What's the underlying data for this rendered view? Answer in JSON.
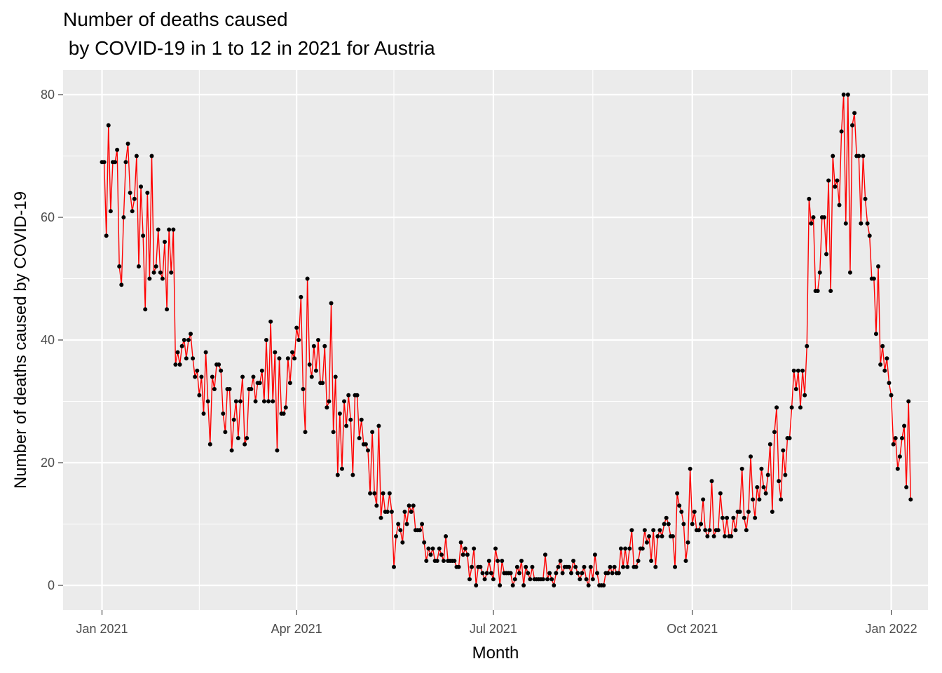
{
  "chart_data": {
    "type": "line",
    "title_lines": [
      "Number of deaths caused",
      " by COVID-19 in 1 to 12 in 2021 for Austria"
    ],
    "xlabel": "Month",
    "ylabel": "Number of deaths caused by COVID-19",
    "x_ticks": [
      "Jan 2021",
      "Apr 2021",
      "Jul 2021",
      "Oct 2021",
      "Jan 2022"
    ],
    "y_ticks": [
      "0",
      "20",
      "40",
      "60",
      "80"
    ],
    "ylim": [
      -4,
      84
    ],
    "xlim": [
      "2020-12-14",
      "2022-01-18"
    ],
    "grid": true,
    "panel_background": "#ebebeb",
    "line_color": "#ff0000",
    "point_color": "#000000",
    "x_start": "2021-01-01",
    "x_step": "1 day",
    "values": [
      69,
      69,
      57,
      75,
      61,
      69,
      69,
      71,
      52,
      49,
      60,
      69,
      72,
      64,
      61,
      63,
      70,
      52,
      65,
      57,
      45,
      64,
      50,
      70,
      51,
      52,
      58,
      51,
      50,
      56,
      45,
      58,
      51,
      58,
      36,
      38,
      36,
      39,
      40,
      37,
      40,
      41,
      37,
      34,
      35,
      31,
      34,
      28,
      38,
      30,
      23,
      34,
      32,
      36,
      36,
      35,
      28,
      25,
      32,
      32,
      22,
      27,
      30,
      24,
      30,
      34,
      23,
      24,
      32,
      32,
      34,
      30,
      33,
      33,
      35,
      30,
      40,
      30,
      43,
      30,
      38,
      22,
      37,
      28,
      28,
      29,
      37,
      33,
      38,
      37,
      42,
      40,
      47,
      32,
      25,
      50,
      36,
      34,
      39,
      35,
      40,
      33,
      33,
      39,
      29,
      30,
      46,
      25,
      34,
      18,
      28,
      19,
      30,
      26,
      31,
      27,
      18,
      31,
      31,
      24,
      27,
      23,
      23,
      22,
      15,
      25,
      15,
      13,
      26,
      11,
      15,
      12,
      12,
      15,
      12,
      3,
      8,
      10,
      9,
      7,
      12,
      10,
      13,
      12,
      13,
      9,
      9,
      9,
      10,
      7,
      4,
      6,
      5,
      6,
      4,
      4,
      6,
      5,
      4,
      8,
      4,
      4,
      4,
      4,
      3,
      3,
      7,
      5,
      6,
      5,
      1,
      3,
      6,
      0,
      3,
      3,
      2,
      1,
      2,
      4,
      2,
      1,
      6,
      4,
      0,
      4,
      2,
      2,
      2,
      2,
      0,
      1,
      3,
      2,
      4,
      0,
      3,
      2,
      1,
      3,
      1,
      1,
      1,
      1,
      1,
      5,
      1,
      2,
      1,
      0,
      2,
      3,
      4,
      2,
      3,
      3,
      3,
      2,
      4,
      3,
      2,
      1,
      2,
      3,
      1,
      0,
      3,
      1,
      5,
      2,
      0,
      0,
      0,
      2,
      2,
      3,
      2,
      3,
      2,
      2,
      6,
      3,
      6,
      3,
      6,
      9,
      3,
      3,
      4,
      6,
      6,
      9,
      7,
      8,
      4,
      9,
      3,
      8,
      9,
      8,
      10,
      11,
      10,
      8,
      8,
      3,
      15,
      13,
      12,
      10,
      4,
      7,
      19,
      10,
      12,
      9,
      9,
      10,
      14,
      9,
      8,
      9,
      17,
      8,
      9,
      9,
      15,
      11,
      8,
      11,
      8,
      8,
      11,
      9,
      12,
      12,
      19,
      11,
      9,
      12,
      21,
      14,
      11,
      16,
      14,
      19,
      16,
      15,
      18,
      23,
      12,
      25,
      29,
      17,
      14,
      22,
      18,
      24,
      24,
      29,
      35,
      32,
      35,
      29,
      35,
      31,
      39,
      63,
      59,
      60,
      48,
      48,
      51,
      60,
      60,
      54,
      66,
      48,
      70,
      65,
      66,
      62,
      74,
      80,
      59,
      80,
      51,
      75,
      77,
      70,
      70,
      59,
      70,
      63,
      59,
      57,
      50,
      50,
      41,
      52,
      36,
      39,
      35,
      37,
      33,
      31,
      23,
      24,
      19,
      21,
      24,
      26,
      16,
      30,
      14
    ]
  }
}
